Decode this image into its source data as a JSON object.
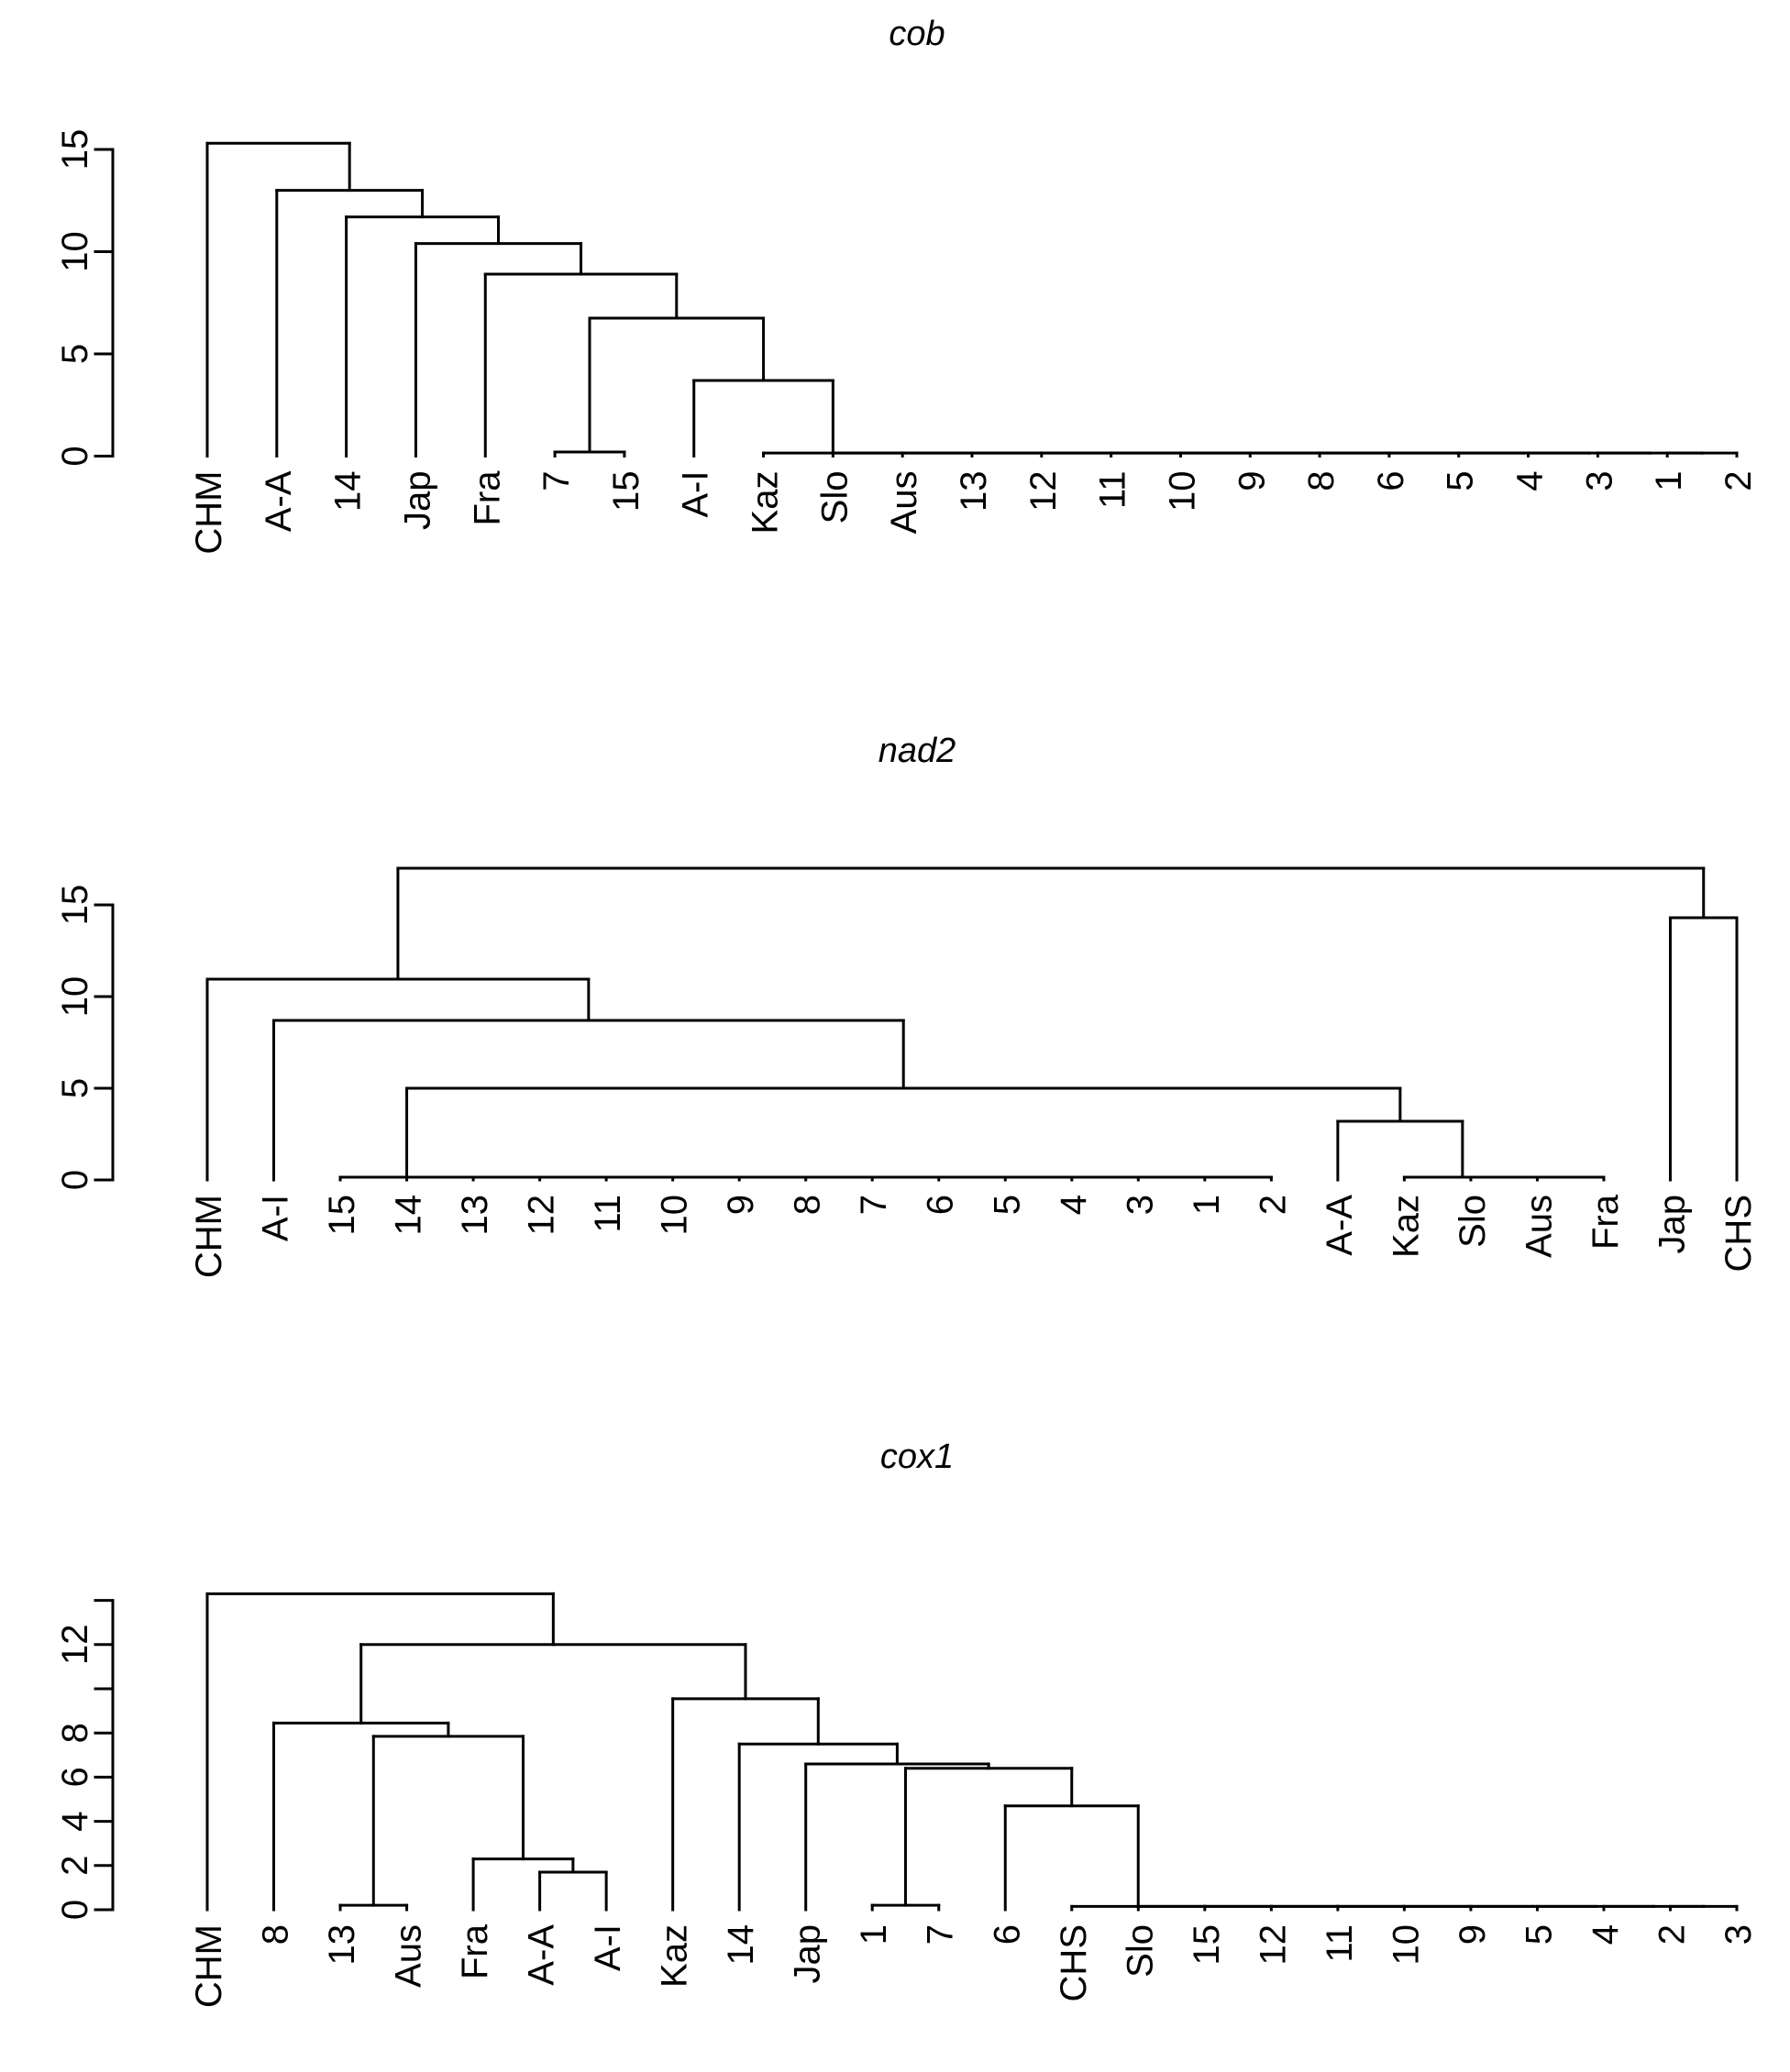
{
  "figure": {
    "background_color": "#ffffff",
    "line_color": "#000000",
    "n_charts": 3
  },
  "chart_data": [
    {
      "type": "dendrogram",
      "title": "cob",
      "orientation": "vertical",
      "yaxis": {
        "tick_values": [
          0,
          5,
          10,
          15
        ],
        "tick_labels": [
          "0",
          "5",
          "10",
          "15"
        ],
        "ylim": [
          0,
          15.5
        ],
        "grid": false
      },
      "leaves": [
        "CHM",
        "A-A",
        "14",
        "Jap",
        "Fra",
        "7",
        "15",
        "A-I",
        "Kaz",
        "Slo",
        "Aus",
        "13",
        "12",
        "11",
        "10",
        "9",
        "8",
        "6",
        "5",
        "4",
        "3",
        "1",
        "2"
      ],
      "merge_heights": {
        "CHM": 15.3,
        "A-A": 13.0,
        "14": 11.7,
        "Jap": 10.4,
        "Fra": 8.9,
        "pair_7_15_cluster": 6.75,
        "A-I_chain": 3.7,
        "pair_7_15": 0.2,
        "flat_chain": 0.15
      },
      "tree": [
        15.3,
        "CHM",
        [
          13.0,
          "A-A",
          [
            11.7,
            "14",
            [
              10.4,
              "Jap",
              [
                8.9,
                "Fra",
                [
                  6.75,
                  [
                    0.2,
                    "7",
                    "15"
                  ],
                  [
                    3.7,
                    "A-I",
                    [
                      0.15,
                      "Kaz",
                      [
                        0.15,
                        "Slo",
                        [
                          0.15,
                          "Aus",
                          [
                            0.15,
                            "13",
                            [
                              0.15,
                              "12",
                              [
                                0.15,
                                "11",
                                [
                                  0.15,
                                  "10",
                                  [
                                    0.15,
                                    "9",
                                    [
                                      0.15,
                                      "8",
                                      [
                                        0.15,
                                        "6",
                                        [
                                          0.15,
                                          "5",
                                          [
                                            0.15,
                                            "4",
                                            [
                                              0.15,
                                              "3",
                                              [
                                                0.15,
                                                "1",
                                                "2"
                                              ]
                                            ]
                                          ]
                                        ]
                                      ]
                                    ]
                                  ]
                                ]
                              ]
                            ]
                          ]
                        ]
                      ]
                    ]
                  ]
                ]
              ]
            ]
          ]
        ]
      ]
    },
    {
      "type": "dendrogram",
      "title": "nad2",
      "orientation": "vertical",
      "yaxis": {
        "tick_values": [
          0,
          5,
          10,
          15
        ],
        "tick_labels": [
          "0",
          "5",
          "10",
          "15"
        ],
        "ylim": [
          0,
          17.2
        ],
        "grid": false
      },
      "leaves": [
        "CHM",
        "A-I",
        "15",
        "14",
        "13",
        "12",
        "11",
        "10",
        "9",
        "8",
        "7",
        "6",
        "5",
        "4",
        "3",
        "1",
        "2",
        "A-A",
        "Kaz",
        "Slo",
        "Aus",
        "Fra",
        "Jap",
        "CHS"
      ],
      "merge_heights": {
        "root": 17.0,
        "Jap_CHS": 14.3,
        "CHM": 10.95,
        "A-I": 8.7,
        "chain_join": 5.0,
        "A-A": 3.2,
        "flat_chain": 0.15
      },
      "tree": [
        17.0,
        [
          10.95,
          "CHM",
          [
            8.7,
            "A-I",
            [
              5.0,
              [
                0.15,
                "15",
                [
                  0.15,
                  "14",
                  [
                    0.15,
                    "13",
                    [
                      0.15,
                      "12",
                      [
                        0.15,
                        "11",
                        [
                          0.15,
                          "10",
                          [
                            0.15,
                            "9",
                            [
                              0.15,
                              "8",
                              [
                                0.15,
                                "7",
                                [
                                  0.15,
                                  "6",
                                  [
                                    0.15,
                                    "5",
                                    [
                                      0.15,
                                      "4",
                                      [
                                        0.15,
                                        "3",
                                        [
                                          0.15,
                                          "1",
                                          "2"
                                        ]
                                      ]
                                    ]
                                  ]
                                ]
                              ]
                            ]
                          ]
                        ]
                      ]
                    ]
                  ]
                ]
              ],
              [
                3.2,
                "A-A",
                [
                  0.15,
                  "Kaz",
                  [
                    0.15,
                    "Slo",
                    [
                      0.15,
                      "Aus",
                      "Fra"
                    ]
                  ]
                ]
              ]
            ]
          ]
        ],
        [
          14.3,
          "Jap",
          "CHS"
        ]
      ]
    },
    {
      "type": "dendrogram",
      "title": "cox1",
      "orientation": "vertical",
      "yaxis": {
        "tick_values": [
          0,
          2,
          4,
          6,
          8,
          10,
          12,
          14
        ],
        "tick_labels": [
          "0",
          "2",
          "4",
          "6",
          "8",
          "",
          "12",
          ""
        ],
        "ylim": [
          0,
          14.4
        ],
        "grid": false
      },
      "leaves": [
        "CHM",
        "8",
        "13",
        "Aus",
        "Fra",
        "A-A",
        "A-I",
        "Kaz",
        "14",
        "Jap",
        "1",
        "7",
        "6",
        "CHS",
        "Slo",
        "15",
        "12",
        "11",
        "10",
        "9",
        "5",
        "4",
        "2",
        "3"
      ],
      "merge_heights": {
        "CHM": 14.3,
        "main_split": 12.0,
        "8": 8.45,
        "13_Aus_cluster": 7.85,
        "Fra": 2.3,
        "A-A_A-I": 1.7,
        "13_Aus": 0.2,
        "Kaz": 9.55,
        "14": 7.5,
        "Jap": 6.6,
        "1_7_cluster": 6.4,
        "6_chain": 4.7,
        "1_7": 0.2,
        "flat_chain": 0.15
      },
      "tree": [
        14.3,
        "CHM",
        [
          12.0,
          [
            8.45,
            "8",
            [
              7.85,
              [
                0.2,
                "13",
                "Aus"
              ],
              [
                2.3,
                "Fra",
                [
                  1.7,
                  "A-A",
                  "A-I"
                ]
              ]
            ]
          ],
          [
            9.55,
            "Kaz",
            [
              7.5,
              "14",
              [
                6.6,
                "Jap",
                [
                  6.4,
                  [
                    0.2,
                    "1",
                    "7"
                  ],
                  [
                    4.7,
                    "6",
                    [
                      0.15,
                      "CHS",
                      [
                        0.15,
                        "Slo",
                        [
                          0.15,
                          "15",
                          [
                            0.15,
                            "12",
                            [
                              0.15,
                              "11",
                              [
                                0.15,
                                "10",
                                [
                                  0.15,
                                  "9",
                                  [
                                    0.15,
                                    "5",
                                    [
                                      0.15,
                                      "4",
                                      [
                                        0.15,
                                        "2",
                                        "3"
                                      ]
                                    ]
                                  ]
                                ]
                              ]
                            ]
                          ]
                        ]
                      ]
                    ]
                  ]
                ]
              ]
            ]
          ]
        ]
      ]
    }
  ]
}
